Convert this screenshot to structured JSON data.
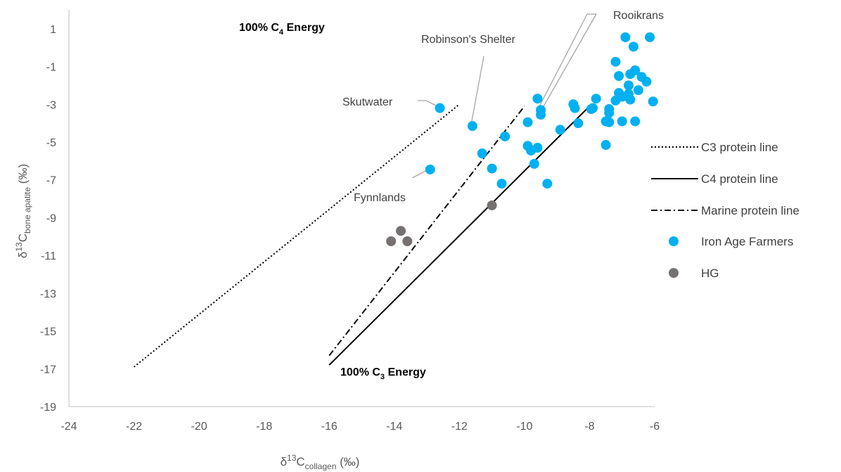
{
  "chart_data": {
    "type": "scatter",
    "xlim": [
      -24,
      -6
    ],
    "ylim": [
      -19,
      2
    ],
    "x_ticks": [
      "-24",
      "-22",
      "-20",
      "-18",
      "-16",
      "-14",
      "-12",
      "-10",
      "-8",
      "-6"
    ],
    "y_ticks": [
      "1",
      "-1",
      "-3",
      "-5",
      "-7",
      "-9",
      "-11",
      "-13",
      "-15",
      "-17",
      "-19"
    ],
    "y_tick_values": [
      1,
      -1,
      -3,
      -5,
      -7,
      -9,
      -11,
      -13,
      -15,
      -17,
      -19
    ],
    "xlabel": {
      "prefix": "δ",
      "sup": "13",
      "main": "C",
      "sub": "collagen",
      "suffix": " (‰)"
    },
    "ylabel": {
      "prefix": "δ",
      "sup": "13",
      "main": "C",
      "sub": "bone apatite",
      "suffix": " (‰)"
    },
    "grid": false,
    "legend_position": "right",
    "lines": [
      {
        "name": "C3 protein line",
        "style": "dotted",
        "color": "#000000",
        "x": [
          -22,
          -12
        ],
        "y": [
          -16.9,
          -3.0
        ]
      },
      {
        "name": "C4 protein line",
        "style": "solid",
        "color": "#000000",
        "x": [
          -16,
          -8
        ],
        "y": [
          -16.8,
          -3.1
        ]
      },
      {
        "name": "Marine protein line",
        "style": "dashdot",
        "color": "#000000",
        "x": [
          -16,
          -10
        ],
        "y": [
          -16.3,
          -3.1
        ]
      }
    ],
    "series": [
      {
        "name": "Iron Age Farmers",
        "color": "#00B0F0",
        "points": [
          [
            -12.6,
            -3.2
          ],
          [
            -11.6,
            -4.15
          ],
          [
            -12.9,
            -6.45
          ],
          [
            -11.3,
            -5.6
          ],
          [
            -10.6,
            -4.7
          ],
          [
            -11.0,
            -6.4
          ],
          [
            -10.7,
            -7.2
          ],
          [
            -9.9,
            -3.95
          ],
          [
            -9.6,
            -2.7
          ],
          [
            -9.5,
            -3.3
          ],
          [
            -9.5,
            -3.55
          ],
          [
            -9.9,
            -5.2
          ],
          [
            -9.8,
            -5.45
          ],
          [
            -9.6,
            -5.3
          ],
          [
            -9.7,
            -6.15
          ],
          [
            -9.3,
            -7.2
          ],
          [
            -8.9,
            -4.35
          ],
          [
            -8.5,
            -3.0
          ],
          [
            -8.45,
            -3.2
          ],
          [
            -8.35,
            -4.0
          ],
          [
            -7.9,
            -3.2
          ],
          [
            -7.95,
            -3.25
          ],
          [
            -7.8,
            -2.7
          ],
          [
            -7.5,
            -3.9
          ],
          [
            -7.5,
            -5.15
          ],
          [
            -7.4,
            -3.25
          ],
          [
            -7.4,
            -3.45
          ],
          [
            -7.4,
            -3.95
          ],
          [
            -7.2,
            -0.75
          ],
          [
            -7.1,
            -1.5
          ],
          [
            -7.1,
            -2.4
          ],
          [
            -7.2,
            -2.8
          ],
          [
            -7.0,
            -2.6
          ],
          [
            -7.0,
            -3.9
          ],
          [
            -6.9,
            0.55
          ],
          [
            -6.8,
            -2.0
          ],
          [
            -6.8,
            -2.45
          ],
          [
            -6.75,
            -1.4
          ],
          [
            -6.75,
            -2.75
          ],
          [
            -6.65,
            0.05
          ],
          [
            -6.6,
            -1.2
          ],
          [
            -6.6,
            -3.9
          ],
          [
            -6.5,
            -2.25
          ],
          [
            -6.4,
            -1.55
          ],
          [
            -6.25,
            -1.8
          ],
          [
            -6.15,
            0.55
          ],
          [
            -6.05,
            -2.85
          ]
        ]
      },
      {
        "name": "HG",
        "color": "#767171",
        "points": [
          [
            -11.0,
            -8.35
          ],
          [
            -13.8,
            -9.7
          ],
          [
            -14.1,
            -10.25
          ],
          [
            -13.6,
            -10.25
          ]
        ]
      }
    ],
    "annotations": [
      {
        "id": "skutwater",
        "text": "Skutwater"
      },
      {
        "id": "robinsons",
        "text": "Robinson's Shelter"
      },
      {
        "id": "rooikrans",
        "text": "Rooikrans"
      },
      {
        "id": "fynnlands",
        "text": "Fynnlands"
      }
    ],
    "energy_labels": [
      {
        "id": "c4",
        "prefix": "100% C",
        "sub": "4",
        "suffix": " Energy"
      },
      {
        "id": "c3",
        "prefix": "100% C",
        "sub": "3",
        "suffix": " Energy"
      }
    ]
  }
}
